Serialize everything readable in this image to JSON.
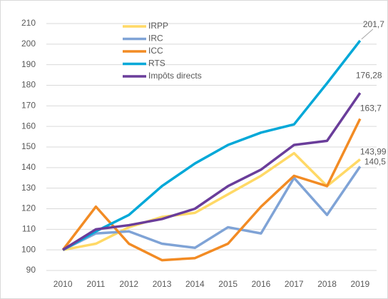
{
  "chart_data": {
    "type": "line",
    "categories": [
      "2010",
      "2011",
      "2012",
      "2013",
      "2014",
      "2015",
      "2016",
      "2017",
      "2018",
      "2019"
    ],
    "ylim": [
      90,
      210
    ],
    "yticks": [
      90,
      100,
      110,
      120,
      130,
      140,
      150,
      160,
      170,
      180,
      190,
      200,
      210
    ],
    "grid": true,
    "legend": "top-left",
    "series": [
      {
        "name": "IRPP",
        "color": "#FFD966",
        "values": [
          100,
          103,
          111,
          116,
          118,
          127,
          136,
          147,
          131,
          143.99
        ],
        "value_labels": [
          null,
          null,
          null,
          null,
          null,
          null,
          null,
          null,
          null,
          "143,99"
        ]
      },
      {
        "name": "IRC",
        "color": "#7FA3D6",
        "values": [
          100,
          108,
          109,
          103,
          101,
          111,
          108,
          135,
          117,
          140.5
        ],
        "value_labels": [
          null,
          null,
          null,
          null,
          null,
          null,
          null,
          null,
          null,
          "140,5"
        ]
      },
      {
        "name": "ICC",
        "color": "#F28B24",
        "values": [
          100,
          121,
          103,
          95,
          96,
          103,
          121,
          136,
          131,
          163.7
        ],
        "value_labels": [
          null,
          null,
          null,
          null,
          null,
          null,
          null,
          null,
          null,
          "163,7"
        ]
      },
      {
        "name": "RTS",
        "color": "#00A8D8",
        "values": [
          100,
          109,
          117,
          131,
          142,
          151,
          157,
          161,
          181,
          201.7
        ],
        "value_labels": [
          null,
          null,
          null,
          null,
          null,
          null,
          null,
          null,
          null,
          "201,7"
        ]
      },
      {
        "name": "Impôts directs",
        "color": "#6A3D9A",
        "values": [
          100,
          110,
          112,
          115,
          120,
          131,
          139,
          151,
          153,
          176.28
        ],
        "value_labels": [
          null,
          null,
          null,
          null,
          null,
          null,
          null,
          null,
          null,
          "176,28"
        ]
      }
    ]
  }
}
